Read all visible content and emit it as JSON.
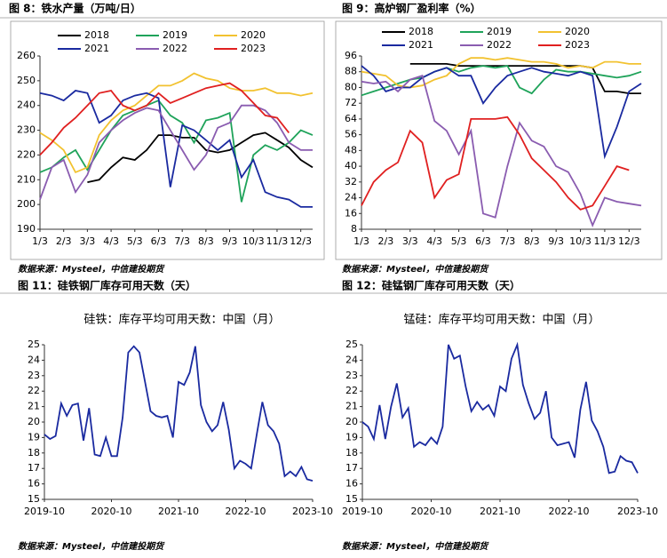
{
  "chart_data": [
    {
      "type": "line",
      "title": "图 8：铁水产量（万吨/日）",
      "source": "数据来源：Mysteel，中信建投期货",
      "categories": [
        "1/3",
        null,
        "2/3",
        null,
        "3/3",
        null,
        "4/3",
        null,
        "5/3",
        null,
        "6/3",
        null,
        "7/3",
        null,
        "8/3",
        null,
        "9/3",
        null,
        "10/3",
        null,
        "11/3",
        null,
        "12/3",
        null
      ],
      "ylim": [
        190,
        260
      ],
      "yticks": [
        190,
        200,
        210,
        220,
        230,
        240,
        250,
        260
      ],
      "series": [
        {
          "name": "2018",
          "color": "#000000",
          "values": [
            null,
            null,
            null,
            null,
            209,
            210,
            215,
            219,
            218,
            222,
            228,
            228,
            227,
            227,
            222,
            221,
            222,
            225,
            228,
            229,
            226,
            223,
            218,
            215
          ]
        },
        {
          "name": "2019",
          "color": "#1fa35a",
          "values": [
            213,
            215,
            219,
            222,
            214,
            222,
            230,
            236,
            238,
            240,
            242,
            236,
            233,
            225,
            234,
            235,
            237,
            201,
            220,
            224,
            222,
            225,
            230,
            228
          ]
        },
        {
          "name": "2020",
          "color": "#f2c230",
          "values": [
            229,
            226,
            222,
            213,
            215,
            228,
            234,
            238,
            240,
            244,
            248,
            248,
            250,
            253,
            251,
            250,
            247,
            246,
            246,
            247,
            245,
            245,
            244,
            245
          ]
        },
        {
          "name": "2021",
          "color": "#1a2aa0",
          "values": [
            245,
            244,
            242,
            246,
            245,
            233,
            236,
            242,
            244,
            245,
            243,
            207,
            232,
            230,
            226,
            222,
            226,
            211,
            218,
            205,
            203,
            202,
            199,
            199
          ]
        },
        {
          "name": "2022",
          "color": "#8a5cb0",
          "values": [
            202,
            215,
            218,
            205,
            212,
            225,
            230,
            234,
            237,
            239,
            238,
            230,
            222,
            214,
            220,
            231,
            233,
            240,
            240,
            238,
            233,
            225,
            222,
            222
          ]
        },
        {
          "name": "2023",
          "color": "#e02020",
          "values": [
            220,
            225,
            231,
            235,
            240,
            245,
            246,
            240,
            238,
            240,
            245,
            241,
            243,
            245,
            247,
            248,
            249,
            246,
            241,
            236,
            235,
            229,
            null,
            null
          ]
        }
      ]
    },
    {
      "type": "line",
      "title": "图 9：高炉钢厂盈利率（%）",
      "source": "数据来源：Mysteel，中信建投期货",
      "categories": [
        "1/3",
        null,
        "2/3",
        null,
        "3/3",
        null,
        "4/3",
        null,
        "5/3",
        null,
        "6/3",
        null,
        "7/3",
        null,
        "8/3",
        null,
        "9/3",
        null,
        "10/3",
        null,
        "11/3",
        null,
        "12/3",
        null
      ],
      "ylim": [
        8,
        96
      ],
      "yticks": [
        8,
        16,
        24,
        32,
        40,
        48,
        56,
        64,
        72,
        80,
        88,
        96
      ],
      "series": [
        {
          "name": "2018",
          "color": "#000000",
          "values": [
            null,
            null,
            null,
            null,
            92,
            92,
            92,
            92,
            91,
            91,
            91,
            91,
            91,
            91,
            91,
            91,
            91,
            91,
            91,
            90,
            78,
            78,
            77,
            77
          ]
        },
        {
          "name": "2019",
          "color": "#1fa35a",
          "values": [
            76,
            78,
            80,
            82,
            84,
            85,
            88,
            90,
            88,
            90,
            91,
            90,
            91,
            80,
            77,
            84,
            89,
            88,
            88,
            87,
            86,
            85,
            86,
            88
          ]
        },
        {
          "name": "2020",
          "color": "#f2c230",
          "values": [
            88,
            87,
            86,
            81,
            80,
            81,
            84,
            86,
            92,
            95,
            95,
            94,
            95,
            94,
            93,
            93,
            92,
            90,
            91,
            90,
            93,
            93,
            92,
            92
          ]
        },
        {
          "name": "2021",
          "color": "#1a2aa0",
          "values": [
            91,
            86,
            78,
            80,
            80,
            85,
            88,
            90,
            86,
            86,
            72,
            80,
            86,
            88,
            90,
            88,
            87,
            86,
            88,
            86,
            45,
            60,
            78,
            82
          ]
        },
        {
          "name": "2022",
          "color": "#8a5cb0",
          "values": [
            83,
            82,
            83,
            78,
            84,
            86,
            63,
            58,
            46,
            58,
            16,
            14,
            40,
            62,
            53,
            50,
            40,
            37,
            26,
            10,
            24,
            22,
            21,
            20
          ]
        },
        {
          "name": "2023",
          "color": "#e02020",
          "values": [
            20,
            32,
            38,
            42,
            58,
            52,
            24,
            33,
            36,
            64,
            64,
            64,
            65,
            56,
            44,
            38,
            32,
            24,
            18,
            20,
            30,
            40,
            38,
            null
          ]
        }
      ]
    },
    {
      "type": "line",
      "title": "图 11：硅铁钢厂库存可用天数（天）",
      "subtitle": "硅铁：库存平均可用天数：中国（月）",
      "source": "数据来源：Mysteel，中信建投期货",
      "categories": [
        "2019-10",
        null,
        null,
        null,
        null,
        null,
        null,
        null,
        null,
        null,
        null,
        null,
        "2020-10",
        null,
        null,
        null,
        null,
        null,
        null,
        null,
        null,
        null,
        null,
        null,
        "2021-10",
        null,
        null,
        null,
        null,
        null,
        null,
        null,
        null,
        null,
        null,
        null,
        "2022-10",
        null,
        null,
        null,
        null,
        null,
        null,
        null,
        null,
        null,
        null,
        null,
        "2023-10"
      ],
      "ylim": [
        15,
        25
      ],
      "yticks": [
        15,
        16,
        17,
        18,
        19,
        20,
        21,
        22,
        23,
        24,
        25
      ],
      "series": [
        {
          "name": null,
          "color": "#1a2aa0",
          "values": [
            19.2,
            18.9,
            19.1,
            21.2,
            20.4,
            21.1,
            21.2,
            18.8,
            20.9,
            17.9,
            17.8,
            19.0,
            17.8,
            17.8,
            20.3,
            24.5,
            24.9,
            24.5,
            22.6,
            20.7,
            20.4,
            20.3,
            20.4,
            19.0,
            22.6,
            22.4,
            23.2,
            24.9,
            21.1,
            20.0,
            19.4,
            19.8,
            21.3,
            19.5,
            17.0,
            17.5,
            17.3,
            17.0,
            19.2,
            21.3,
            19.8,
            19.4,
            18.6,
            16.5,
            16.8,
            16.5,
            17.1,
            16.3,
            16.2
          ]
        }
      ]
    },
    {
      "type": "line",
      "title": "图 12：硅锰钢厂库存可用天数（天）",
      "subtitle": "锰硅：库存平均可用天数：中国（月）",
      "source": "数据来源：Mysteel，中信建投期货",
      "categories": [
        "2019-10",
        null,
        null,
        null,
        null,
        null,
        null,
        null,
        null,
        null,
        null,
        null,
        "2020-10",
        null,
        null,
        null,
        null,
        null,
        null,
        null,
        null,
        null,
        null,
        null,
        "2021-10",
        null,
        null,
        null,
        null,
        null,
        null,
        null,
        null,
        null,
        null,
        null,
        "2022-10",
        null,
        null,
        null,
        null,
        null,
        null,
        null,
        null,
        null,
        null,
        null,
        "2023-10"
      ],
      "ylim": [
        15,
        25
      ],
      "yticks": [
        15,
        16,
        17,
        18,
        19,
        20,
        21,
        22,
        23,
        24,
        25
      ],
      "series": [
        {
          "name": null,
          "color": "#1a2aa0",
          "values": [
            20.0,
            19.7,
            18.9,
            21.1,
            18.9,
            21.0,
            22.5,
            20.3,
            20.9,
            18.4,
            18.7,
            18.5,
            19.0,
            18.6,
            19.7,
            25.0,
            24.1,
            24.3,
            22.3,
            20.7,
            21.3,
            20.8,
            21.1,
            20.4,
            22.3,
            22.0,
            24.1,
            25.0,
            22.4,
            21.2,
            20.2,
            20.6,
            22.0,
            19.0,
            18.5,
            18.6,
            18.7,
            17.7,
            20.8,
            22.6,
            20.1,
            19.4,
            18.4,
            16.7,
            16.8,
            17.8,
            17.5,
            17.4,
            16.7
          ]
        }
      ]
    }
  ]
}
